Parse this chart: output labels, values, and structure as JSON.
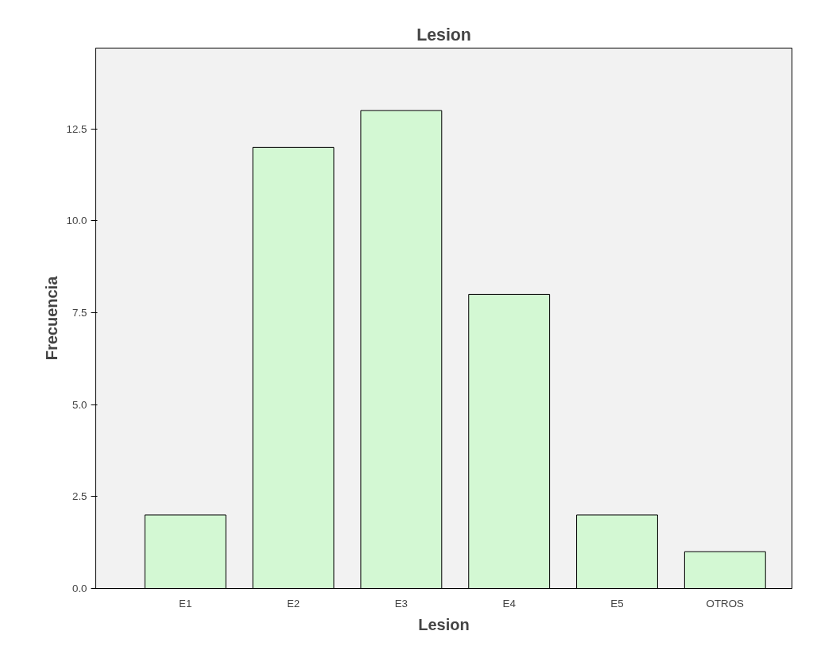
{
  "chart_data": {
    "type": "bar",
    "title": "Lesion",
    "xlabel": "Lesion",
    "ylabel": "Frecuencia",
    "categories": [
      "E1",
      "E2",
      "E3",
      "E4",
      "E5",
      "OTROS"
    ],
    "values": [
      2,
      12,
      13,
      8,
      2,
      1
    ],
    "color": "#d3f8d3",
    "ylim": [
      0,
      14.7
    ],
    "yticks": [
      {
        "value": 0,
        "label": "0.0"
      },
      {
        "value": 2.5,
        "label": "2.5"
      },
      {
        "value": 5,
        "label": "5.0"
      },
      {
        "value": 7.5,
        "label": "7.5"
      },
      {
        "value": 10,
        "label": "10.0"
      },
      {
        "value": 12.5,
        "label": "12.5"
      }
    ],
    "grid": false
  }
}
